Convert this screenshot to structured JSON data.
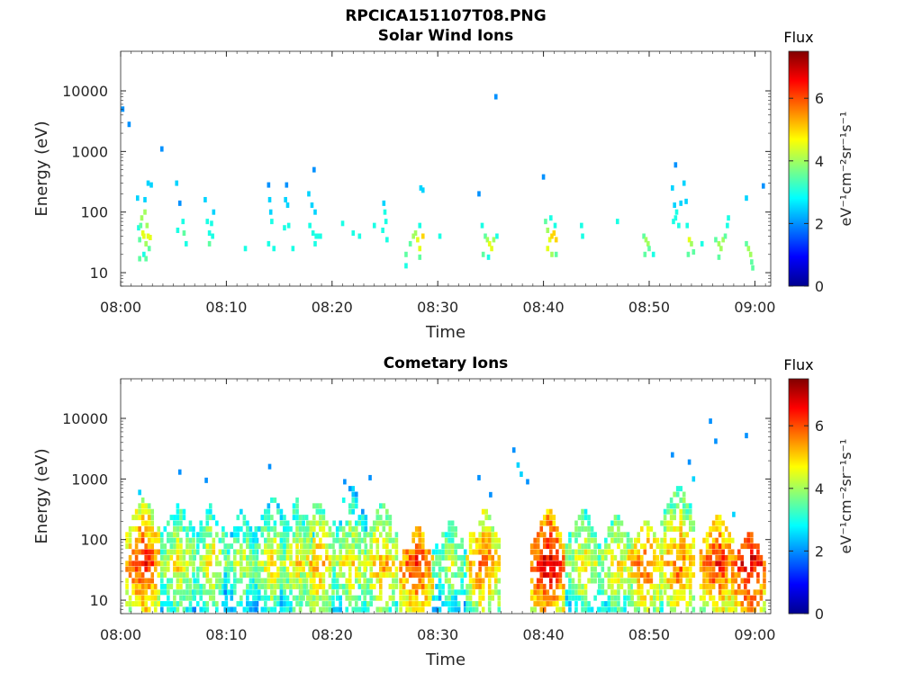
{
  "figure": {
    "title": "RPCICA151107T08.PNG"
  },
  "chart_data": [
    {
      "type": "heatmap",
      "title": "Solar Wind Ions",
      "xlabel": "Time",
      "ylabel": "Energy (eV)",
      "x_tick_labels": [
        "08:00",
        "08:10",
        "08:20",
        "08:30",
        "08:40",
        "08:50",
        "09:00"
      ],
      "x_range_minutes": [
        0,
        61.5
      ],
      "y_scale": "log",
      "y_tick_values": [
        10,
        100,
        1000,
        10000
      ],
      "y_tick_labels": [
        "10",
        "100",
        "1000",
        "10000"
      ],
      "y_range": [
        6,
        45000
      ],
      "colorbar": {
        "title": "Flux",
        "label": "eV⁻¹cm⁻²sr⁻¹s⁻¹",
        "range": [
          0,
          7.5
        ],
        "tick_values": [
          0,
          2,
          4,
          6
        ],
        "tick_labels": [
          "0",
          "2",
          "4",
          "6"
        ]
      },
      "cells": [
        [
          0.2,
          5000,
          2.0
        ],
        [
          0.8,
          2800,
          2.0
        ],
        [
          3.9,
          1100,
          2.0
        ],
        [
          18.3,
          500,
          2.0
        ],
        [
          35.5,
          8000,
          2.0
        ],
        [
          40.0,
          380,
          2.0
        ],
        [
          52.5,
          600,
          2.0
        ],
        [
          60.8,
          270,
          2.0
        ],
        [
          1.6,
          170,
          2.5
        ],
        [
          1.7,
          55,
          3.0
        ],
        [
          1.8,
          35,
          3.5
        ],
        [
          1.9,
          60,
          3.5
        ],
        [
          2.0,
          80,
          4.0
        ],
        [
          2.1,
          45,
          4.5
        ],
        [
          2.2,
          40,
          4.5
        ],
        [
          2.3,
          100,
          4.0
        ],
        [
          2.4,
          30,
          4.0
        ],
        [
          2.5,
          60,
          4.0
        ],
        [
          2.6,
          40,
          4.5
        ],
        [
          2.7,
          25,
          3.5
        ],
        [
          2.2,
          20,
          3.0
        ],
        [
          2.6,
          300,
          2.5
        ],
        [
          2.9,
          280,
          2.5
        ],
        [
          2.3,
          160,
          2.5
        ],
        [
          2.8,
          38,
          4.5
        ],
        [
          1.8,
          17,
          3.5
        ],
        [
          2.4,
          17,
          3.5
        ],
        [
          5.3,
          300,
          2.5
        ],
        [
          5.6,
          140,
          2.0
        ],
        [
          5.4,
          50,
          3.0
        ],
        [
          5.9,
          70,
          3.0
        ],
        [
          6.0,
          45,
          3.5
        ],
        [
          6.2,
          30,
          3.0
        ],
        [
          8.0,
          160,
          2.5
        ],
        [
          8.2,
          70,
          3.0
        ],
        [
          8.4,
          45,
          3.0
        ],
        [
          8.6,
          65,
          3.0
        ],
        [
          8.8,
          100,
          2.5
        ],
        [
          8.4,
          30,
          3.5
        ],
        [
          8.7,
          40,
          3.0
        ],
        [
          11.8,
          25,
          3.0
        ],
        [
          14.0,
          280,
          2.0
        ],
        [
          14.1,
          160,
          2.5
        ],
        [
          14.2,
          100,
          2.5
        ],
        [
          14.3,
          70,
          3.0
        ],
        [
          14.0,
          30,
          3.0
        ],
        [
          14.5,
          25,
          3.0
        ],
        [
          15.7,
          280,
          2.0
        ],
        [
          15.6,
          160,
          2.5
        ],
        [
          15.8,
          130,
          2.5
        ],
        [
          15.5,
          55,
          3.0
        ],
        [
          15.9,
          60,
          3.0
        ],
        [
          16.3,
          25,
          3.0
        ],
        [
          17.8,
          200,
          2.5
        ],
        [
          18.1,
          130,
          2.5
        ],
        [
          18.4,
          100,
          2.5
        ],
        [
          17.9,
          60,
          3.0
        ],
        [
          18.2,
          45,
          3.0
        ],
        [
          18.5,
          40,
          3.0
        ],
        [
          18.7,
          40,
          3.0
        ],
        [
          18.9,
          40,
          3.0
        ],
        [
          18.4,
          30,
          3.0
        ],
        [
          21.0,
          65,
          3.0
        ],
        [
          22.0,
          45,
          3.0
        ],
        [
          22.6,
          40,
          3.0
        ],
        [
          24.0,
          60,
          3.0
        ],
        [
          24.9,
          140,
          2.5
        ],
        [
          25.0,
          100,
          3.0
        ],
        [
          25.1,
          70,
          3.0
        ],
        [
          24.8,
          50,
          3.0
        ],
        [
          25.2,
          35,
          3.0
        ],
        [
          27.0,
          20,
          3.5
        ],
        [
          27.0,
          13,
          3.0
        ],
        [
          27.4,
          30,
          3.5
        ],
        [
          27.7,
          40,
          4.0
        ],
        [
          27.9,
          45,
          4.0
        ],
        [
          28.1,
          35,
          4.5
        ],
        [
          28.3,
          25,
          4.5
        ],
        [
          28.6,
          40,
          5.0
        ],
        [
          28.3,
          18,
          3.5
        ],
        [
          28.4,
          250,
          2.5
        ],
        [
          28.6,
          230,
          2.5
        ],
        [
          28.3,
          60,
          3.0
        ],
        [
          30.2,
          40,
          3.0
        ],
        [
          33.9,
          200,
          2.0
        ],
        [
          34.2,
          60,
          3.0
        ],
        [
          34.5,
          40,
          3.5
        ],
        [
          34.7,
          35,
          4.0
        ],
        [
          34.9,
          30,
          4.5
        ],
        [
          35.1,
          25,
          4.5
        ],
        [
          35.3,
          35,
          4.0
        ],
        [
          34.3,
          20,
          3.5
        ],
        [
          34.8,
          18,
          3.0
        ],
        [
          35.6,
          40,
          3.0
        ],
        [
          40.2,
          70,
          3.5
        ],
        [
          40.4,
          50,
          4.0
        ],
        [
          40.6,
          35,
          4.5
        ],
        [
          40.8,
          40,
          5.0
        ],
        [
          41.0,
          45,
          5.0
        ],
        [
          41.2,
          35,
          5.0
        ],
        [
          40.4,
          25,
          4.5
        ],
        [
          40.8,
          20,
          4.0
        ],
        [
          41.2,
          20,
          3.5
        ],
        [
          41.1,
          60,
          3.0
        ],
        [
          40.7,
          80,
          3.0
        ],
        [
          43.6,
          60,
          3.0
        ],
        [
          43.7,
          40,
          3.0
        ],
        [
          47.0,
          70,
          3.0
        ],
        [
          49.5,
          40,
          3.5
        ],
        [
          49.7,
          35,
          4.0
        ],
        [
          49.9,
          30,
          4.0
        ],
        [
          49.6,
          20,
          3.5
        ],
        [
          50.0,
          25,
          3.5
        ],
        [
          50.4,
          20,
          3.0
        ],
        [
          52.2,
          250,
          2.5
        ],
        [
          52.4,
          130,
          2.5
        ],
        [
          52.6,
          100,
          3.0
        ],
        [
          52.3,
          70,
          3.0
        ],
        [
          52.5,
          80,
          3.0
        ],
        [
          52.8,
          60,
          3.0
        ],
        [
          53.0,
          140,
          2.5
        ],
        [
          53.3,
          300,
          2.5
        ],
        [
          53.5,
          150,
          2.5
        ],
        [
          53.6,
          60,
          3.0
        ],
        [
          53.8,
          35,
          4.5
        ],
        [
          54.0,
          30,
          4.0
        ],
        [
          53.7,
          20,
          3.5
        ],
        [
          54.2,
          22,
          3.5
        ],
        [
          55.0,
          30,
          3.0
        ],
        [
          56.3,
          35,
          3.5
        ],
        [
          56.6,
          30,
          4.0
        ],
        [
          56.8,
          25,
          4.0
        ],
        [
          57.0,
          35,
          4.0
        ],
        [
          57.2,
          40,
          3.5
        ],
        [
          56.6,
          18,
          3.5
        ],
        [
          57.4,
          60,
          3.0
        ],
        [
          57.5,
          80,
          3.0
        ],
        [
          59.2,
          30,
          3.5
        ],
        [
          59.4,
          25,
          4.0
        ],
        [
          59.6,
          20,
          4.0
        ],
        [
          59.7,
          15,
          3.5
        ],
        [
          59.8,
          12,
          3.5
        ],
        [
          59.2,
          170,
          2.5
        ]
      ]
    },
    {
      "type": "heatmap",
      "title": "Cometary Ions",
      "xlabel": "Time",
      "ylabel": "Energy (eV)",
      "x_tick_labels": [
        "08:00",
        "08:10",
        "08:20",
        "08:30",
        "08:40",
        "08:50",
        "09:00"
      ],
      "x_range_minutes": [
        0,
        61.5
      ],
      "y_scale": "log",
      "y_tick_values": [
        10,
        100,
        1000,
        10000
      ],
      "y_tick_labels": [
        "10",
        "100",
        "1000",
        "10000"
      ],
      "y_range": [
        6,
        45000
      ],
      "colorbar": {
        "title": "Flux",
        "label": "eV⁻¹cm⁻²sr⁻¹s⁻¹",
        "range": [
          0,
          7.5
        ],
        "tick_values": [
          0,
          2,
          4,
          6
        ],
        "tick_labels": [
          "0",
          "2",
          "4",
          "6"
        ]
      },
      "bursts": [
        {
          "t": 2.2,
          "peak": 6.5,
          "hi": 550
        },
        {
          "t": 5.5,
          "peak": 5.0,
          "hi": 480
        },
        {
          "t": 8.6,
          "peak": 5.0,
          "hi": 420
        },
        {
          "t": 11.5,
          "peak": 4.5,
          "hi": 320
        },
        {
          "t": 14.4,
          "peak": 5.0,
          "hi": 600
        },
        {
          "t": 16.8,
          "peak": 5.0,
          "hi": 500
        },
        {
          "t": 18.7,
          "peak": 5.5,
          "hi": 500
        },
        {
          "t": 21.8,
          "peak": 5.0,
          "hi": 850
        },
        {
          "t": 24.7,
          "peak": 5.5,
          "hi": 450
        },
        {
          "t": 28.1,
          "peak": 6.5,
          "hi": 180
        },
        {
          "t": 31.2,
          "peak": 4.5,
          "hi": 250
        },
        {
          "t": 34.4,
          "peak": 6.0,
          "hi": 350
        },
        {
          "t": 40.5,
          "peak": 7.0,
          "hi": 350
        },
        {
          "t": 43.8,
          "peak": 5.0,
          "hi": 350
        },
        {
          "t": 46.9,
          "peak": 5.0,
          "hi": 300
        },
        {
          "t": 49.7,
          "peak": 6.0,
          "hi": 250
        },
        {
          "t": 52.8,
          "peak": 6.0,
          "hi": 900
        },
        {
          "t": 56.5,
          "peak": 6.5,
          "hi": 300
        },
        {
          "t": 59.5,
          "peak": 7.0,
          "hi": 150
        }
      ],
      "sparse": [
        [
          1.8,
          600,
          2.5
        ],
        [
          5.6,
          1300,
          2.0
        ],
        [
          8.1,
          950,
          2.0
        ],
        [
          14.1,
          1600,
          2.0
        ],
        [
          21.2,
          900,
          2.0
        ],
        [
          23.6,
          1050,
          2.0
        ],
        [
          33.9,
          1050,
          2.0
        ],
        [
          35.0,
          550,
          2.0
        ],
        [
          37.2,
          3000,
          2.0
        ],
        [
          37.6,
          1700,
          2.5
        ],
        [
          37.9,
          1200,
          2.5
        ],
        [
          38.5,
          900,
          2.0
        ],
        [
          52.2,
          2500,
          2.0
        ],
        [
          53.8,
          1900,
          2.0
        ],
        [
          54.2,
          1000,
          2.5
        ],
        [
          55.8,
          9000,
          2.0
        ],
        [
          56.3,
          4200,
          2.0
        ],
        [
          58.0,
          260,
          2.5
        ],
        [
          59.2,
          5200,
          2.0
        ]
      ]
    }
  ]
}
